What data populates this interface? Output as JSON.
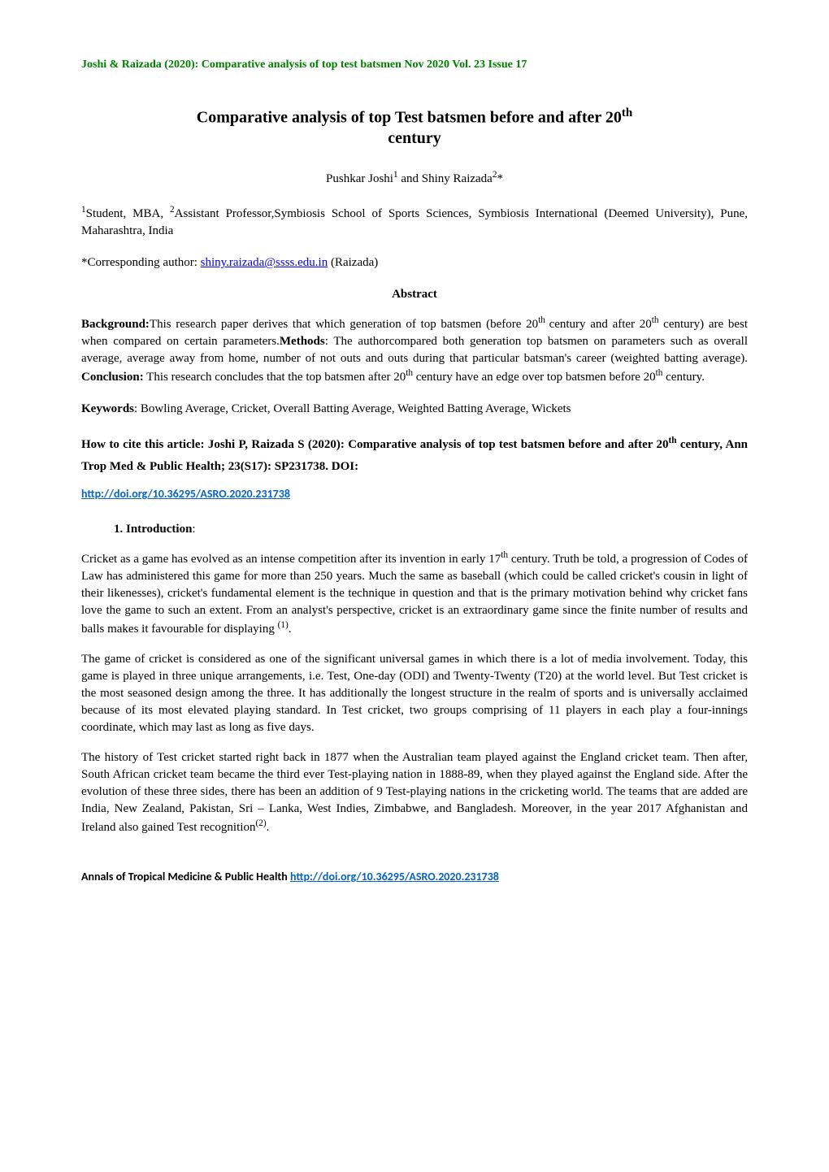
{
  "running_header": "Joshi & Raizada (2020):  Comparative analysis of top test batsmen   Nov 2020   Vol. 23 Issue 17",
  "title": {
    "line1": "Comparative analysis of top Test batsmen before and after 20",
    "sup1": "th",
    "line2": "century"
  },
  "authors": {
    "a1_name": "Pushkar Joshi",
    "a1_sup": "1",
    "join": " and ",
    "a2_name": "Shiny Raizada",
    "a2_sup": "2",
    "asterisk": "*"
  },
  "affiliation": {
    "sup1": "1",
    "text1": "Student, MBA, ",
    "sup2": "2",
    "text2": "Assistant Professor,Symbiosis School of Sports Sciences, Symbiosis International (Deemed University), Pune, Maharashtra, India"
  },
  "corresponding": {
    "prefix": "*Corresponding author: ",
    "email": "shiny.raizada@ssss.edu.in",
    "suffix": " (Raizada)"
  },
  "abstract_heading": "Abstract",
  "abstract": {
    "bg_label": "Background:",
    "bg_text1": "This research paper derives that which generation of top batsmen (before 20",
    "bg_sup1": "th ",
    "bg_text2": "century and after 20",
    "bg_sup2": "th",
    "bg_text3": " century) are best when compared on certain parameters.",
    "methods_label": "Methods",
    "methods_text": ": The authorcompared both generation top batsmen on parameters such as overall average, average away from home, number of not outs and outs during that particular batsman's career (weighted batting average). ",
    "concl_label": "Conclusion:",
    "concl_text1": " This research concludes that the top batsmen after 20",
    "concl_sup": "th",
    "concl_text2": " century have an edge over top batsmen before 20",
    "concl_sup2": "th",
    "concl_text3": " century."
  },
  "keywords": {
    "label": "Keywords",
    "text": ": Bowling Average, Cricket, Overall Batting Average, Weighted Batting Average, Wickets"
  },
  "citation": {
    "text1": "How to cite this article: Joshi P, Raizada S (2020):  Comparative analysis of top test batsmen before and after 20",
    "sup": "th",
    "text2": " century, Ann Trop Med & Public Health; 23(S17): SP231738. DOI:"
  },
  "doi_url": "http://doi.org/10.36295/ASRO.2020.231738",
  "intro": {
    "heading": "1.   Introduction",
    "colon": ":",
    "p1_a": "Cricket as a game has evolved as an intense competition after its invention in early 17",
    "p1_sup": "th",
    "p1_b": " century. Truth be told, a progression of Codes of Law has administered this game for more than 250 years. Much the same as baseball (which could be called cricket's cousin in light of their likenesses), cricket's fundamental element is the technique in question and that is the primary motivation behind why cricket fans love the game to such an extent. From an analyst's perspective, cricket is an extraordinary game since the finite number of results and balls makes it favourable for displaying ",
    "p1_ref": "(1)",
    "p1_c": ".",
    "p2": "The game of cricket is considered as one of the significant universal games in which there is a lot of media involvement. Today, this game is played in three unique arrangements, i.e. Test, One-day (ODI) and Twenty-Twenty (T20) at the world level. But Test cricket is the most seasoned design among the three. It has additionally the longest structure in the realm of sports and is universally acclaimed because of its most elevated playing standard. In Test cricket, two groups comprising of 11 players in each play a four-innings coordinate, which may last as long as five days.",
    "p3_a": "The history of Test cricket started right back in 1877 when the Australian team played against the England cricket team. Then after, South African cricket team became the third ever Test-playing nation in 1888-89, when they played against the England side. After the evolution of these three sides, there has been an addition of 9 Test-playing nations in the cricketing world. The teams that are added are India, New Zealand, Pakistan, Sri – Lanka, West Indies, Zimbabwe, and Bangladesh. Moreover, in the year 2017 Afghanistan and Ireland also gained Test recognition",
    "p3_ref": "(2)",
    "p3_b": "."
  },
  "footer": {
    "journal": "Annals of Tropical Medicine & Public Health   ",
    "url": "http://doi.org/10.36295/ASRO.2020.231738"
  },
  "colors": {
    "header_green": "#008000",
    "link_blue": "#0000ee",
    "doi_blue": "#0563c1",
    "text": "#000000",
    "background": "#ffffff"
  }
}
